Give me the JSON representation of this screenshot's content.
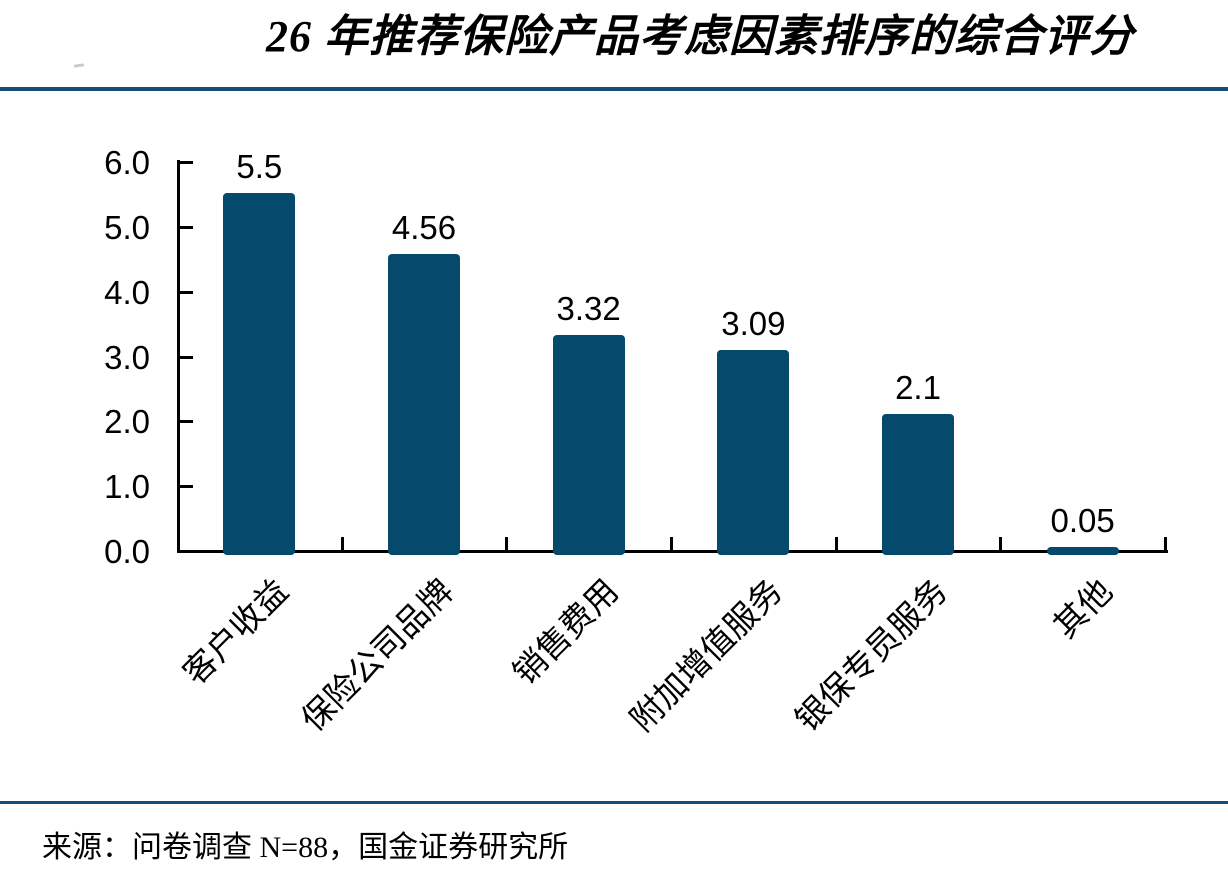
{
  "title": "26 年推荐保险产品考虑因素排序的综合评分",
  "source_note": "来源：问卷调查 N=88，国金证券研究所",
  "colors": {
    "bar": "#05496d",
    "divider": "#174e77",
    "axis": "#000000"
  },
  "chart_data": {
    "type": "bar",
    "title": "26 年推荐保险产品考虑因素排序的综合评分",
    "categories": [
      "客户收益",
      "保险公司品牌",
      "销售费用",
      "附加增值服务",
      "银保专员服务",
      "其他"
    ],
    "values": [
      5.5,
      4.56,
      3.32,
      3.09,
      2.1,
      0.05
    ],
    "data_labels": [
      "5.5",
      "4.56",
      "3.32",
      "3.09",
      "2.1",
      "0.05"
    ],
    "xlabel": "",
    "ylabel": "",
    "ylim": [
      0,
      6
    ],
    "ytick_labels": [
      "0.0",
      "1.0",
      "2.0",
      "3.0",
      "4.0",
      "5.0",
      "6.0"
    ],
    "grid": false,
    "legend": false,
    "bar_color": "#05496d",
    "source": "来源：问卷调查 N=88，国金证券研究所"
  }
}
